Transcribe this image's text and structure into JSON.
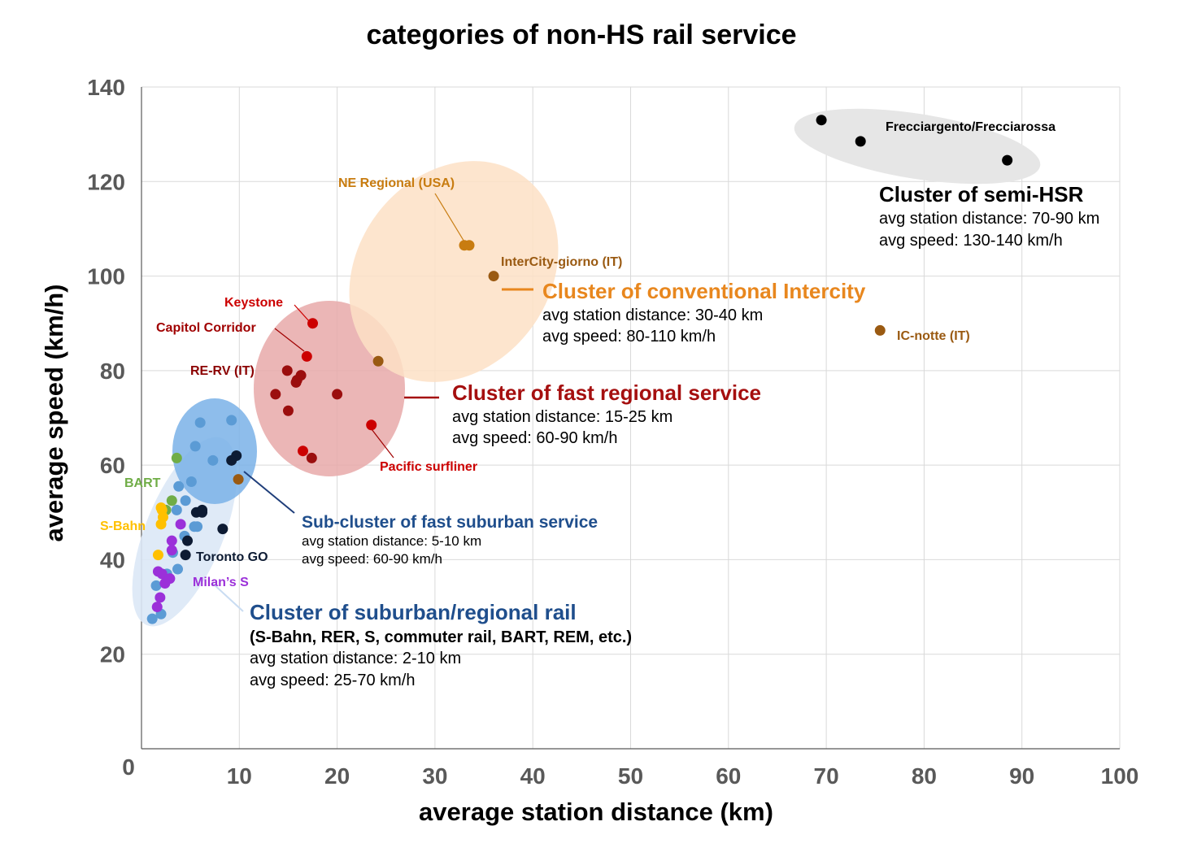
{
  "chart_data": {
    "type": "scatter",
    "title": "categories of non-HS rail service",
    "xlabel": "average station distance (km)",
    "ylabel": "average speed (km/h)",
    "xlim": [
      0,
      100
    ],
    "ylim": [
      0,
      140
    ],
    "x_ticks": [
      "0",
      "10",
      "20",
      "30",
      "40",
      "50",
      "60",
      "70",
      "80",
      "90",
      "100"
    ],
    "y_ticks": [
      "20",
      "40",
      "60",
      "80",
      "100",
      "120",
      "140"
    ],
    "grid": true,
    "legend": "none",
    "series": [
      {
        "color": "#000000",
        "points": [
          [
            69.5,
            133
          ],
          [
            73.5,
            128.5
          ],
          [
            88.5,
            124.5
          ]
        ]
      },
      {
        "color": "#c87c10",
        "points": [
          [
            33,
            106.5
          ],
          [
            33.5,
            106.5
          ]
        ]
      },
      {
        "color": "#9a5a12",
        "points": [
          [
            36,
            100
          ],
          [
            24.2,
            82
          ],
          [
            75.5,
            88.5
          ],
          [
            9.9,
            57
          ]
        ]
      },
      {
        "color": "#cc0000",
        "points": [
          [
            17.5,
            90
          ],
          [
            16.9,
            83
          ],
          [
            23.5,
            68.5
          ],
          [
            16.5,
            63
          ]
        ]
      },
      {
        "color": "#9b0e0e",
        "points": [
          [
            14.9,
            80
          ],
          [
            16.3,
            79
          ],
          [
            15.9,
            78
          ],
          [
            15.8,
            77.5
          ],
          [
            13.7,
            75
          ],
          [
            20,
            75
          ],
          [
            15,
            71.5
          ],
          [
            17.4,
            61.5
          ]
        ]
      },
      {
        "color": "#5b9bd5",
        "points": [
          [
            6,
            69
          ],
          [
            9.2,
            69.5
          ],
          [
            5.5,
            64
          ],
          [
            7.3,
            61
          ],
          [
            5.1,
            56.5
          ],
          [
            3.8,
            55.5
          ],
          [
            4.5,
            52.5
          ],
          [
            3.6,
            50.5
          ],
          [
            5.4,
            47
          ],
          [
            5.7,
            47
          ],
          [
            4.4,
            45
          ],
          [
            3.2,
            41.5
          ],
          [
            3.7,
            38
          ],
          [
            2.6,
            37
          ],
          [
            1.5,
            34.5
          ],
          [
            2,
            28.5
          ],
          [
            1.1,
            27.5
          ]
        ]
      },
      {
        "color": "#0d1b33",
        "points": [
          [
            9.7,
            62
          ],
          [
            9.2,
            61
          ],
          [
            5.6,
            50
          ],
          [
            6.2,
            50.5
          ],
          [
            6.2,
            50
          ],
          [
            8.3,
            46.5
          ],
          [
            4.7,
            44
          ],
          [
            4.5,
            41
          ]
        ]
      },
      {
        "color": "#70ad47",
        "points": [
          [
            3.6,
            61.5
          ],
          [
            3.1,
            52.5
          ],
          [
            2.5,
            50.5
          ]
        ]
      },
      {
        "color": "#ffc000",
        "points": [
          [
            2,
            51
          ],
          [
            2.1,
            50.5
          ],
          [
            2.2,
            49
          ],
          [
            2,
            47.5
          ],
          [
            1.7,
            41
          ]
        ]
      },
      {
        "color": "#9b30d9",
        "points": [
          [
            4,
            47.5
          ],
          [
            3.1,
            44
          ],
          [
            3.1,
            42
          ],
          [
            1.7,
            37.5
          ],
          [
            2.1,
            37
          ],
          [
            2.9,
            36
          ],
          [
            2.4,
            35
          ],
          [
            1.9,
            32
          ],
          [
            1.6,
            30
          ]
        ]
      }
    ],
    "point_labels": [
      {
        "text": "Frecciargento/Frecciarossa",
        "color": "#000000"
      },
      {
        "text": "NE Regional (USA)",
        "color": "#c87c10"
      },
      {
        "text": "InterCity-giorno (IT)",
        "color": "#9a5a12"
      },
      {
        "text": "IC-notte (IT)",
        "color": "#9a5a12"
      },
      {
        "text": "Keystone",
        "color": "#cc0000"
      },
      {
        "text": "Capitol Corridor",
        "color": "#a00000"
      },
      {
        "text": "RE-RV (IT)",
        "color": "#8b0000"
      },
      {
        "text": "Pacific surfliner",
        "color": "#cc0000"
      },
      {
        "text": "BART",
        "color": "#70ad47"
      },
      {
        "text": "S-Bahn",
        "color": "#ffc000"
      },
      {
        "text": "Toronto GO",
        "color": "#0d1b33"
      },
      {
        "text": "Milan’s S",
        "color": "#9b30d9"
      }
    ],
    "annotations": [
      {
        "heading": "Cluster of semi-HSR",
        "color": "#000000",
        "lines": [
          "avg station distance: 70-90 km",
          "avg speed: 130-140 km/h"
        ]
      },
      {
        "heading": "Cluster of conventional Intercity",
        "color": "#e8871e",
        "lines": [
          "avg station distance: 30-40 km",
          "avg speed: 80-110 km/h"
        ]
      },
      {
        "heading": "Cluster of fast regional service",
        "color": "#a50f0f",
        "lines": [
          "avg station distance: 15-25 km",
          "avg speed: 60-90 km/h"
        ]
      },
      {
        "heading": "Sub-cluster of fast suburban service",
        "color": "#1f4e8c",
        "lines": [
          "avg station distance: 5-10 km",
          "avg speed: 60-90 km/h"
        ]
      },
      {
        "heading": "Cluster of suburban/regional rail",
        "color": "#1f4e8c",
        "subheading": "(S-Bahn, RER, S, commuter rail, BART, REM, etc.)",
        "lines": [
          "avg station distance: 2-10 km",
          "avg speed: 25-70 km/h"
        ]
      }
    ]
  }
}
